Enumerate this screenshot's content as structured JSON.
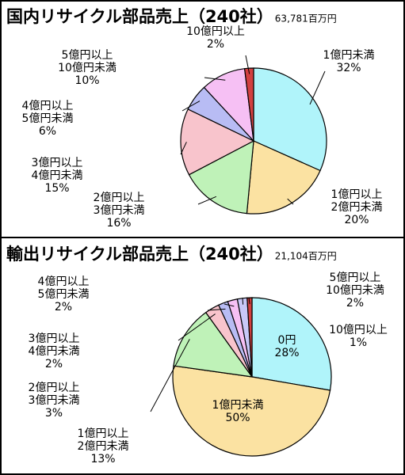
{
  "chart_data": [
    {
      "type": "pie",
      "title": "国内リサイクル部品売上（240社）",
      "subtitle": "63,781百万円",
      "categories": [
        [
          "1億円未満"
        ],
        [
          "1億円以上",
          "2億円未満"
        ],
        [
          "2億円以上",
          "3億円未満"
        ],
        [
          "3億円以上",
          "4億円未満"
        ],
        [
          "4億円以上",
          "5億円未満"
        ],
        [
          "5億円以上",
          "10億円未満"
        ],
        [
          "10億円以上"
        ]
      ],
      "values": [
        32,
        20,
        16,
        15,
        6,
        10,
        2
      ],
      "value_labels": [
        "32%",
        "20%",
        "16%",
        "15%",
        "6%",
        "10%",
        "2%"
      ],
      "colors": [
        "#b0f4fa",
        "#fbe2a2",
        "#bff2b8",
        "#f8c4cc",
        "#b8bcf4",
        "#f6c0f4",
        "#d24040"
      ]
    },
    {
      "type": "pie",
      "title": "輸出リサイクル部品売上（240社）",
      "subtitle": "21,104百万円",
      "categories": [
        [
          "0円"
        ],
        [
          "1億円未満"
        ],
        [
          "1億円以上",
          "2億円未満"
        ],
        [
          "2億円以上",
          "3億円未満"
        ],
        [
          "3億円以上",
          "4億円未満"
        ],
        [
          "4億円以上",
          "5億円未満"
        ],
        [
          "5億円以上",
          "10億円未満"
        ],
        [
          "10億円以上"
        ]
      ],
      "values": [
        28,
        50,
        13,
        3,
        2,
        2,
        2,
        1
      ],
      "value_labels": [
        "28%",
        "50%",
        "13%",
        "3%",
        "2%",
        "2%",
        "2%",
        "1%"
      ],
      "colors": [
        "#b0f4fa",
        "#fbe2a2",
        "#bff2b8",
        "#f8c4cc",
        "#b8bcf4",
        "#f6c0f4",
        "#c8c8f8",
        "#d24040"
      ]
    }
  ]
}
